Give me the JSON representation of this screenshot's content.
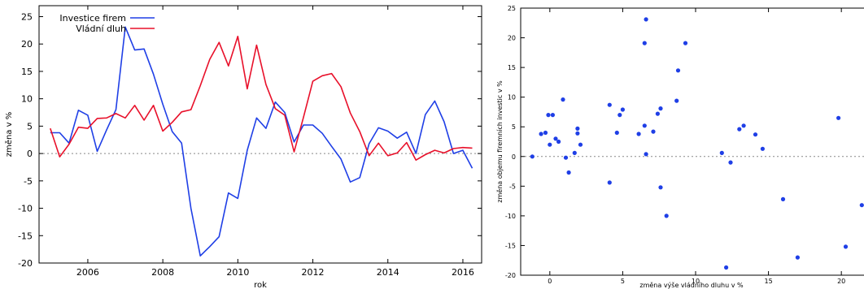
{
  "chart_data": [
    {
      "type": "line",
      "title": "",
      "xlabel": "rok",
      "ylabel": "změna v %",
      "xlim": [
        2004.7,
        2016.5
      ],
      "ylim": [
        -20,
        27
      ],
      "x_ticks": [
        2006,
        2008,
        2010,
        2012,
        2014,
        2016
      ],
      "y_ticks": [
        -20,
        -15,
        -10,
        -5,
        0,
        5,
        10,
        15,
        20,
        25
      ],
      "legend_position": "top-left",
      "grid": false,
      "zero_line": true,
      "series": [
        {
          "name": "Investice firem",
          "color": "#1f3fe6",
          "x": [
            2005.0,
            2005.25,
            2005.5,
            2005.75,
            2006.0,
            2006.25,
            2006.5,
            2006.75,
            2007.0,
            2007.25,
            2007.5,
            2007.75,
            2008.0,
            2008.25,
            2008.5,
            2008.75,
            2009.0,
            2009.25,
            2009.5,
            2009.75,
            2010.0,
            2010.25,
            2010.5,
            2010.75,
            2011.0,
            2011.25,
            2011.5,
            2011.75,
            2012.0,
            2012.25,
            2012.5,
            2012.75,
            2013.0,
            2013.25,
            2013.5,
            2013.75,
            2014.0,
            2014.25,
            2014.5,
            2014.75,
            2015.0,
            2015.25,
            2015.5,
            2015.75,
            2016.0,
            2016.25
          ],
          "y": [
            3.8,
            3.8,
            1.9,
            7.9,
            7.0,
            0.4,
            4.3,
            8.0,
            23.1,
            18.9,
            19.1,
            14.5,
            9.0,
            4.0,
            1.9,
            -10.0,
            -18.7,
            -17.0,
            -15.2,
            -7.2,
            -8.2,
            0.6,
            6.5,
            4.6,
            9.4,
            7.5,
            2.1,
            5.2,
            5.2,
            3.7,
            1.3,
            -1.0,
            -5.2,
            -4.4,
            1.8,
            4.7,
            4.1,
            2.8,
            3.9,
            0.0,
            7.1,
            9.6,
            5.8,
            0.0,
            0.6,
            -2.7
          ]
        },
        {
          "name": "Vládní dluh",
          "color": "#e8102a",
          "x": [
            2005.0,
            2005.25,
            2005.5,
            2005.75,
            2006.0,
            2006.25,
            2006.5,
            2006.75,
            2007.0,
            2007.25,
            2007.5,
            2007.75,
            2008.0,
            2008.25,
            2008.5,
            2008.75,
            2009.0,
            2009.25,
            2009.5,
            2009.75,
            2010.0,
            2010.25,
            2010.5,
            2010.75,
            2011.0,
            2011.25,
            2011.5,
            2011.75,
            2012.0,
            2012.25,
            2012.5,
            2012.75,
            2013.0,
            2013.25,
            2013.5,
            2013.75,
            2014.0,
            2014.25,
            2014.5,
            2014.75,
            2015.0,
            2015.25,
            2015.5,
            2015.75,
            2016.0,
            2016.25
          ],
          "y": [
            4.6,
            -0.6,
            1.7,
            4.8,
            4.6,
            6.4,
            6.5,
            7.3,
            6.5,
            8.8,
            6.1,
            8.8,
            4.1,
            5.7,
            7.6,
            8.0,
            12.4,
            17.2,
            20.3,
            16.0,
            21.4,
            11.8,
            19.8,
            12.6,
            8.2,
            7.0,
            0.3,
            6.6,
            13.2,
            14.2,
            14.6,
            12.2,
            7.4,
            4.0,
            -0.4,
            1.9,
            -0.4,
            0.1,
            2.0,
            -1.2,
            -0.2,
            0.6,
            0.1,
            0.9,
            1.1,
            1.0
          ]
        }
      ]
    },
    {
      "type": "scatter",
      "title": "",
      "xlabel": "změna výše vládního dluhu v %",
      "ylabel": "změna objemu firemních investic v %",
      "xlim": [
        -2,
        22
      ],
      "ylim": [
        -20,
        25
      ],
      "x_ticks": [
        0,
        5,
        10,
        15,
        20
      ],
      "y_ticks": [
        -20,
        -15,
        -10,
        -5,
        0,
        5,
        10,
        15,
        20,
        25
      ],
      "grid": false,
      "zero_line": true,
      "color": "#1f3fe6",
      "x": [
        -1.2,
        -0.6,
        -0.3,
        -0.1,
        0.0,
        0.2,
        0.4,
        0.6,
        0.9,
        1.1,
        1.3,
        1.7,
        1.9,
        1.9,
        2.1,
        4.1,
        4.1,
        4.6,
        4.8,
        5.0,
        6.1,
        6.5,
        6.5,
        6.6,
        6.6,
        7.1,
        7.4,
        7.6,
        7.6,
        8.0,
        8.7,
        8.8,
        9.3,
        11.8,
        12.1,
        12.4,
        13.0,
        13.3,
        14.1,
        14.6,
        16.0,
        17.0,
        19.8,
        20.3,
        21.4
      ],
      "y": [
        0.0,
        3.8,
        4.0,
        7.0,
        2.0,
        7.0,
        3.0,
        2.5,
        9.6,
        -0.2,
        -2.7,
        0.6,
        3.9,
        4.7,
        2.0,
        -4.4,
        8.7,
        4.0,
        7.0,
        7.9,
        3.8,
        5.2,
        19.1,
        23.1,
        0.4,
        4.2,
        7.2,
        8.1,
        -5.2,
        -10.0,
        9.4,
        14.5,
        19.1,
        0.6,
        -18.7,
        -1.0,
        4.6,
        5.2,
        3.7,
        1.3,
        -7.2,
        -17.0,
        6.5,
        -15.2,
        -8.2
      ]
    }
  ]
}
